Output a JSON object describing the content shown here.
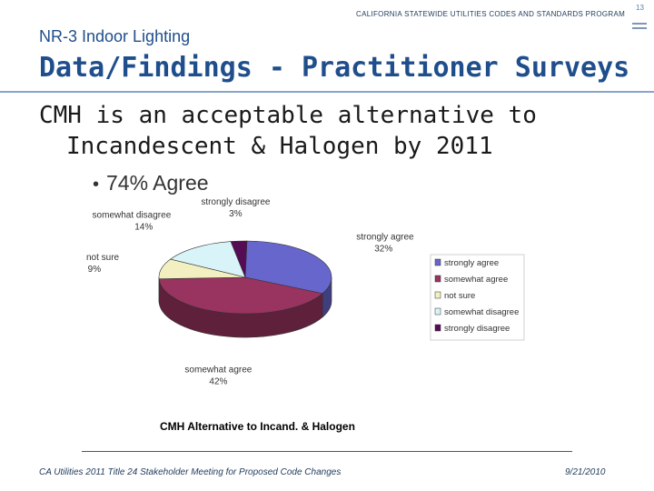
{
  "header": {
    "program": "CALIFORNIA STATEWIDE UTILITIES CODES AND STANDARDS PROGRAM",
    "page_number": "13"
  },
  "section_title": "NR-3 Indoor Lighting",
  "main_title": "Data/Findings - Practitioner Surveys",
  "statement": {
    "line1": "CMH is an acceptable alternative to",
    "line2": "Incandescent & Halogen by 2011"
  },
  "bullet": "74% Agree",
  "chart_data": {
    "type": "pie",
    "title": "CMH Alternative to Incand. & Halogen",
    "slices": [
      {
        "label": "strongly agree",
        "value": 32,
        "pct_label": "32%",
        "color": "#6666cc"
      },
      {
        "label": "somewhat agree",
        "value": 42,
        "pct_label": "42%",
        "color": "#99335f"
      },
      {
        "label": "not sure",
        "value": 9,
        "pct_label": "9%",
        "color": "#f2f0c0"
      },
      {
        "label": "somewhat disagree",
        "value": 14,
        "pct_label": "14%",
        "color": "#d8f4f8"
      },
      {
        "label": "strongly disagree",
        "value": 3,
        "pct_label": "3%",
        "color": "#550c55"
      }
    ],
    "legend_position": "right"
  },
  "footer": {
    "meeting": "CA Utilities 2011 Title 24 Stakeholder Meeting for Proposed Code Changes",
    "date": "9/21/2010"
  }
}
